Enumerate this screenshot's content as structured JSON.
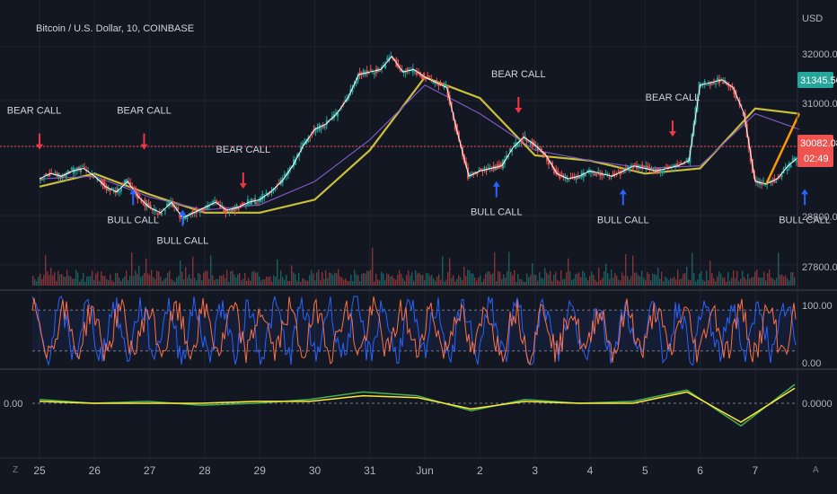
{
  "header": {
    "symbol": "Bitcoin / U.S. Dollar, 10, COINBASE",
    "currency": "USD"
  },
  "price_axis": {
    "ticks": [
      "32000.00",
      "31000.00",
      "28800.00",
      "27800.00"
    ]
  },
  "price_tags": {
    "high": "31345.50",
    "current": "30082.08",
    "countdown": "02:49"
  },
  "stoch_axis": {
    "top": "100.00",
    "bottom": "0.00"
  },
  "osc_axis": {
    "left": "0.00",
    "right": "0.0000"
  },
  "time_axis": {
    "labels": [
      "25",
      "26",
      "27",
      "28",
      "29",
      "30",
      "31",
      "Jun",
      "2",
      "3",
      "4",
      "5",
      "6",
      "7"
    ]
  },
  "corners": {
    "left": "Z",
    "right": "A"
  },
  "colors": {
    "background": "#131722",
    "up": "#26a69a",
    "down": "#ef5350",
    "ma_fast": "#ffffff",
    "ma_mid": "#7e57c2",
    "ma_slow": "#c9c03a",
    "forecast": "#ff9800",
    "bull_arrow": "#2962ff",
    "bear_arrow": "#f23645",
    "stoch_k": "#2962ff",
    "stoch_d": "#ff7043",
    "osc_a": "#4caf50",
    "osc_b": "#ffeb3b",
    "osc_c": "#ef5350",
    "high_tag": "#26a69a",
    "current_tag": "#ef5350"
  },
  "chart_data": [
    {
      "type": "line",
      "pane": "price",
      "title": "Bitcoin / U.S. Dollar, 10, COINBASE",
      "ylabel": "USD",
      "ylim": [
        27600,
        32600
      ],
      "x": [
        "25",
        "26",
        "27",
        "28",
        "29",
        "30",
        "31",
        "Jun",
        "2",
        "3",
        "4",
        "5",
        "6",
        "7"
      ],
      "series": [
        {
          "name": "",
          "x": [
            0,
            0.2,
            0.4,
            0.6,
            0.8,
            1.0,
            1.2,
            1.4,
            1.6,
            1.8,
            2.0,
            2.2,
            2.4,
            2.6,
            2.8,
            3.0,
            3.2,
            3.4,
            3.6,
            3.8,
            4.0,
            4.2,
            4.4,
            4.6,
            4.8,
            5.0,
            5.2,
            5.4,
            5.6,
            5.8,
            6.0,
            6.2,
            6.4,
            6.6,
            6.8,
            7.0,
            7.2,
            7.4,
            7.6,
            7.8,
            8.0,
            8.2,
            8.4,
            8.6,
            8.8,
            9.0,
            9.2,
            9.4,
            9.6,
            9.8,
            10.0,
            10.2,
            10.4,
            10.6,
            10.8,
            11.0,
            11.2,
            11.4,
            11.6,
            11.8,
            12.0,
            12.2,
            12.4,
            12.6,
            12.8,
            13.0,
            13.2,
            13.4,
            13.6,
            13.8
          ],
          "values": [
            29650,
            29750,
            29700,
            29800,
            29850,
            29700,
            29500,
            29400,
            29600,
            29300,
            29100,
            29000,
            29200,
            28900,
            29000,
            29100,
            29200,
            29050,
            29100,
            29200,
            29250,
            29400,
            29600,
            29900,
            30300,
            30600,
            30700,
            30900,
            31200,
            31650,
            31700,
            31750,
            32000,
            31700,
            31750,
            31600,
            31500,
            31400,
            30500,
            29700,
            29800,
            29850,
            29900,
            30250,
            30450,
            30300,
            30100,
            29750,
            29650,
            29700,
            29800,
            29750,
            29700,
            29800,
            29900,
            29850,
            29800,
            29850,
            29900,
            30000,
            31450,
            31500,
            31550,
            31400,
            30900,
            29600,
            29550,
            29650,
            29900,
            30080
          ]
        },
        {
          "name": "",
          "x": [
            0,
            1,
            2,
            3,
            4,
            5,
            6,
            7,
            8,
            9,
            10,
            11,
            12,
            13,
            13.8
          ],
          "values": [
            29650,
            29700,
            29300,
            29050,
            29150,
            29600,
            30400,
            31450,
            30900,
            30200,
            30000,
            29850,
            29900,
            30900,
            30600
          ]
        },
        {
          "name": "",
          "x": [
            0,
            1,
            2,
            3,
            4,
            5,
            6,
            7,
            8,
            9,
            10,
            11,
            12,
            13,
            13.8
          ],
          "values": [
            29500,
            29750,
            29350,
            29000,
            29000,
            29250,
            30200,
            31600,
            31200,
            30100,
            30000,
            29750,
            29850,
            31000,
            30900
          ]
        },
        {
          "name": "",
          "x": [
            13.2,
            13.8
          ],
          "values": [
            29550,
            30900
          ]
        }
      ],
      "annotations": [
        {
          "text": "BEAR CALL",
          "x": 0.0,
          "price": 30900
        },
        {
          "text": "BEAR CALL",
          "x": 1.9,
          "price": 30900
        },
        {
          "text": "BEAR CALL",
          "x": 3.7,
          "price": 30150
        },
        {
          "text": "BEAR CALL",
          "x": 8.7,
          "price": 31600
        },
        {
          "text": "BEAR CALL",
          "x": 11.5,
          "price": 31150
        },
        {
          "text": "BULL CALL",
          "x": 1.7,
          "price": 28800
        },
        {
          "text": "BULL CALL",
          "x": 2.6,
          "price": 28400
        },
        {
          "text": "BULL CALL",
          "x": 8.3,
          "price": 28950
        },
        {
          "text": "BULL CALL",
          "x": 10.6,
          "price": 28800
        },
        {
          "text": "BULL CALL",
          "x": 13.9,
          "price": 28800
        }
      ],
      "grid": true
    },
    {
      "type": "line",
      "pane": "stochastic",
      "ylim": [
        0,
        100
      ],
      "series": [
        {
          "name": "",
          "values": [
            80,
            30,
            70,
            20,
            85,
            40,
            10,
            60,
            90,
            35,
            15,
            75,
            50,
            95,
            25,
            65,
            5,
            80,
            45,
            90
          ]
        },
        {
          "name": "",
          "values": [
            70,
            40,
            60,
            30,
            75,
            45,
            20,
            55,
            80,
            40,
            25,
            65,
            55,
            85,
            35,
            60,
            15,
            70,
            50,
            80
          ]
        }
      ],
      "grid": true
    },
    {
      "type": "line",
      "pane": "oscillator",
      "ylim": [
        -1,
        1
      ],
      "series": [
        {
          "name": "",
          "values": [
            0.1,
            0.0,
            0.05,
            -0.05,
            0.0,
            0.1,
            0.3,
            0.2,
            -0.2,
            0.1,
            0.0,
            0.05,
            0.35,
            -0.6,
            0.5
          ]
        },
        {
          "name": "",
          "values": [
            0.05,
            0.0,
            0.0,
            0.0,
            0.05,
            0.05,
            0.2,
            0.15,
            -0.15,
            0.05,
            0.0,
            0.0,
            0.3,
            -0.5,
            0.4
          ]
        }
      ],
      "grid": true
    }
  ]
}
